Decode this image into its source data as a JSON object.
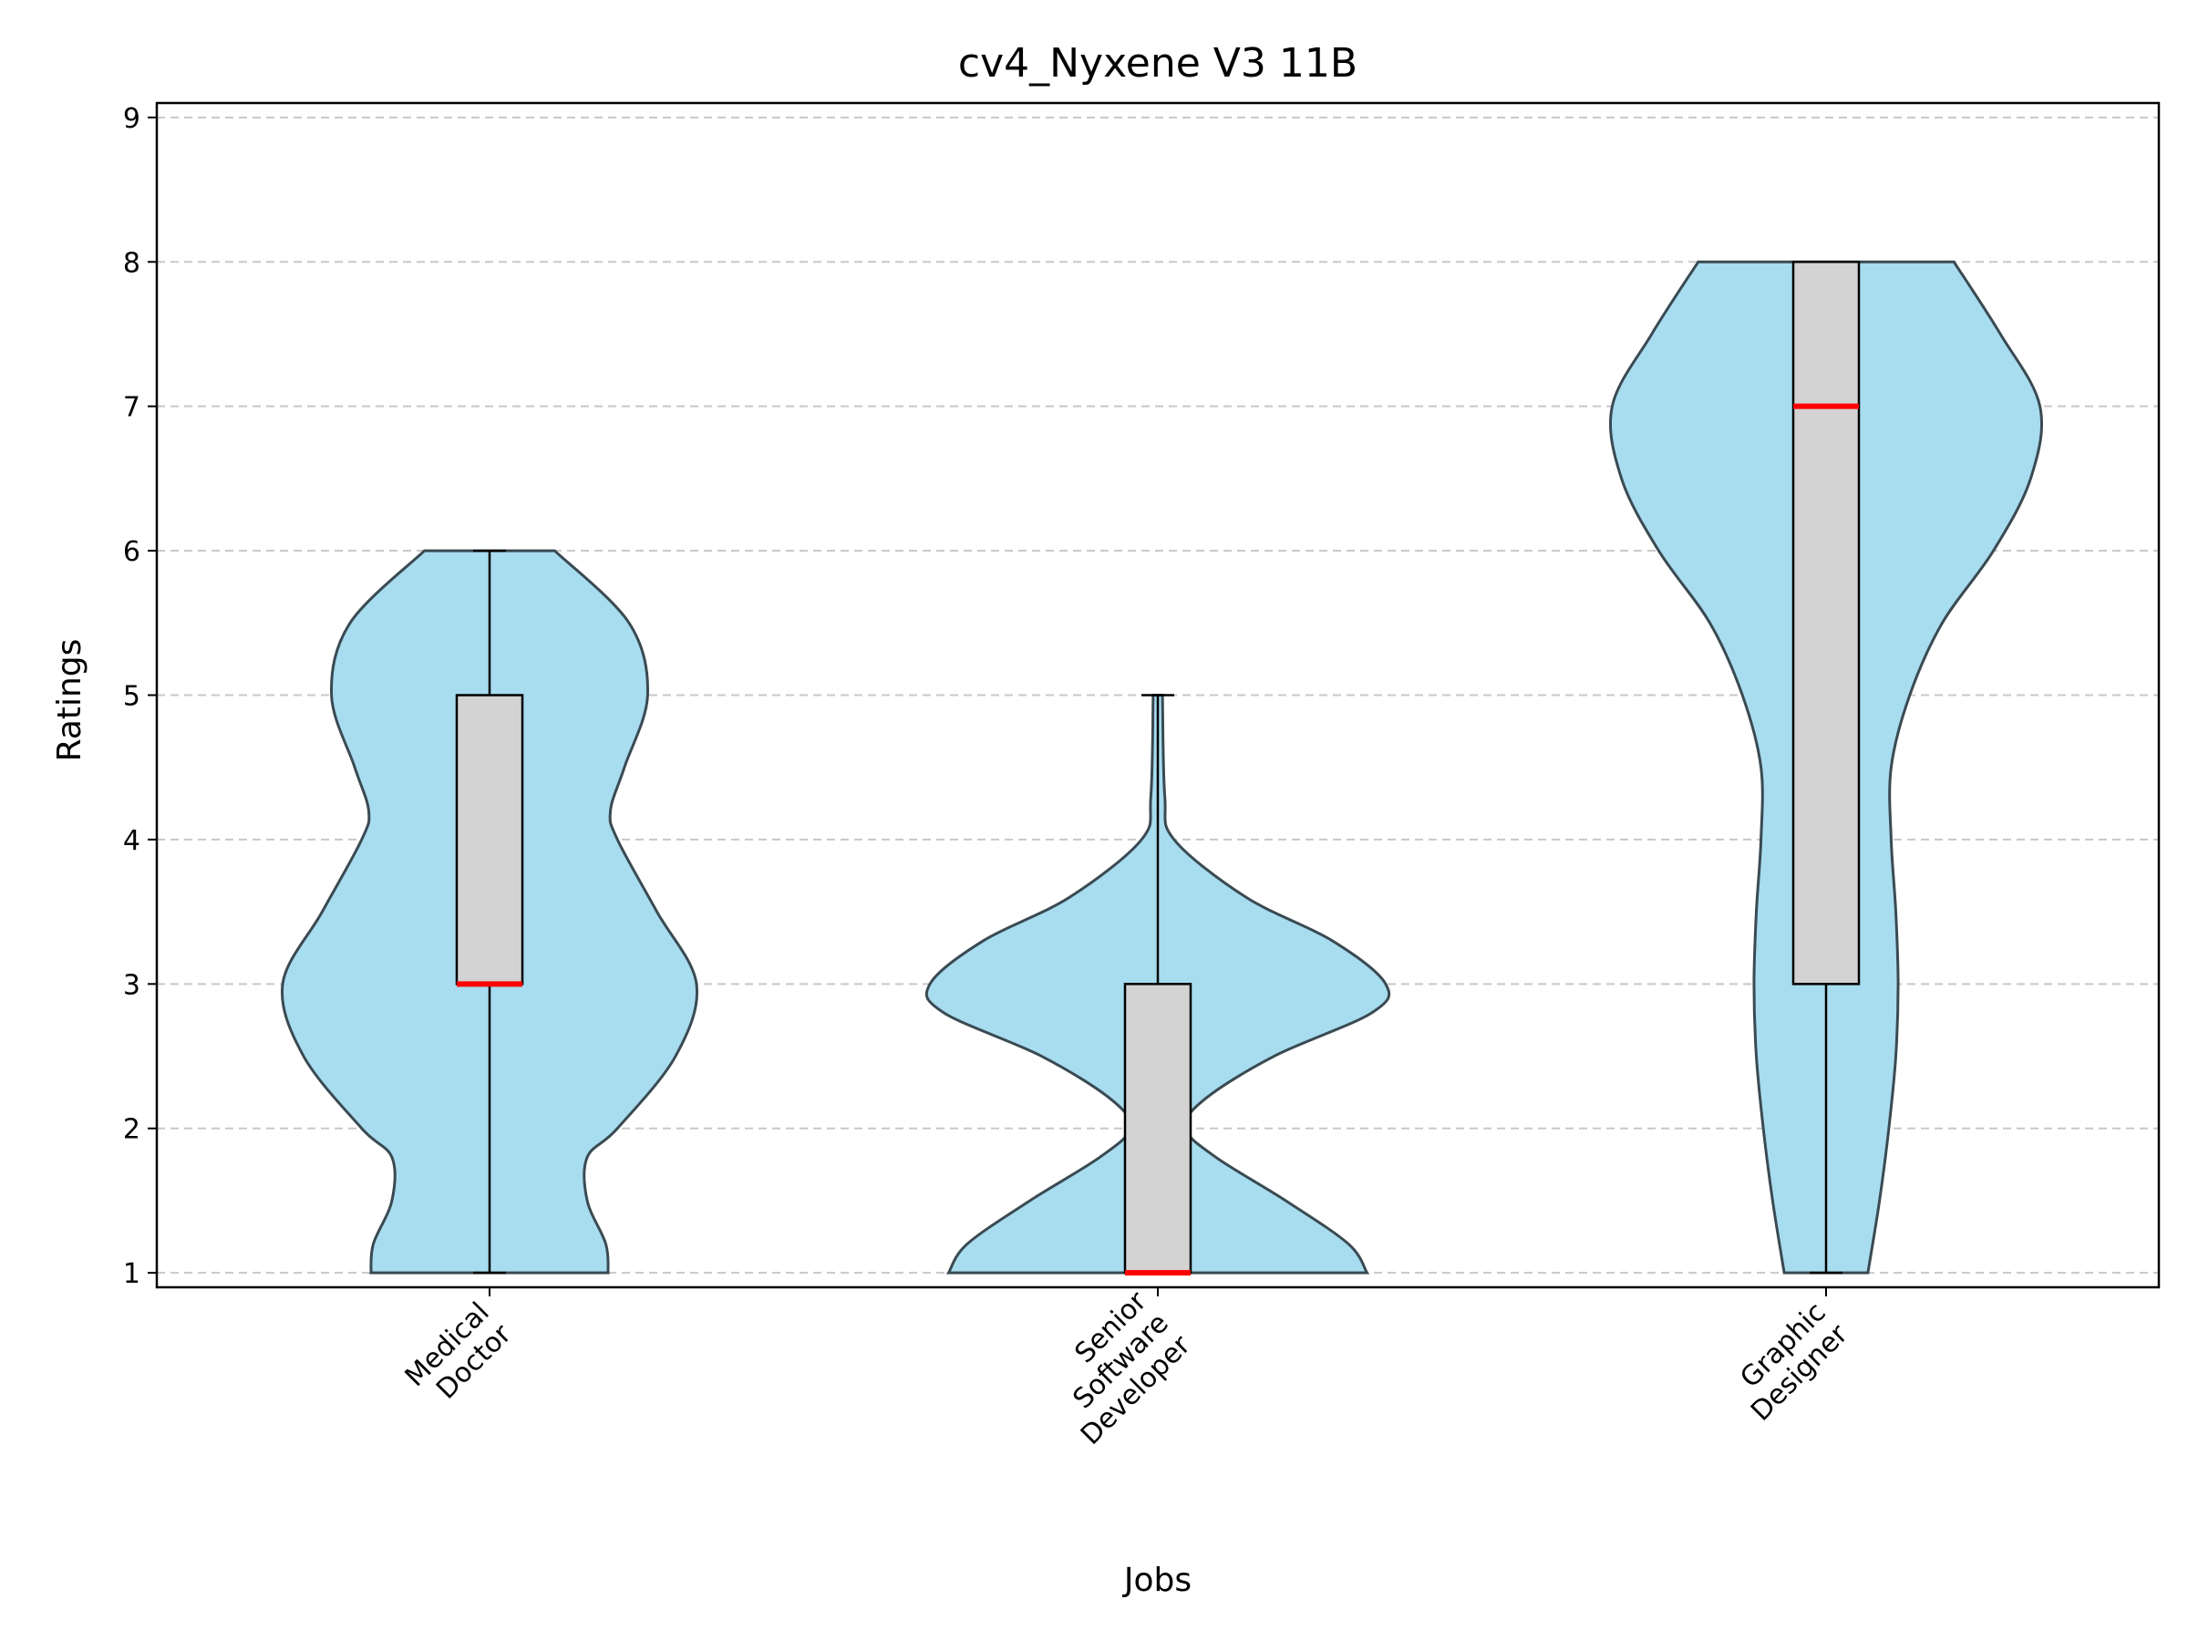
{
  "chart_data": {
    "type": "violin",
    "title": "cv4_Nyxene V3 11B",
    "xlabel": "Jobs",
    "ylabel": "Ratings",
    "ylim": [
      0.9,
      9.1
    ],
    "yticks": [
      1,
      2,
      3,
      4,
      5,
      6,
      7,
      8,
      9
    ],
    "grid": "y-dashed",
    "categories": [
      {
        "name": "Medical Doctor",
        "label_lines": [
          "Medical",
          "Doctor"
        ]
      },
      {
        "name": "Senior Software Developer",
        "label_lines": [
          "Senior",
          "Software",
          "Developer"
        ]
      },
      {
        "name": "Graphic Designer",
        "label_lines": [
          "Graphic",
          "Designer"
        ]
      }
    ],
    "distributions": [
      {
        "name": "Medical Doctor",
        "min": 1,
        "q1": 3,
        "median": 3,
        "q3": 5,
        "max": 6,
        "density": [
          [
            1,
            0.51
          ],
          [
            1.2,
            0.5
          ],
          [
            1.5,
            0.42
          ],
          [
            1.8,
            0.42
          ],
          [
            2,
            0.55
          ],
          [
            2.5,
            0.8
          ],
          [
            3,
            0.89
          ],
          [
            3.5,
            0.72
          ],
          [
            4,
            0.55
          ],
          [
            4.2,
            0.52
          ],
          [
            4.5,
            0.58
          ],
          [
            5,
            0.68
          ],
          [
            5.5,
            0.6
          ],
          [
            6,
            0.28
          ]
        ]
      },
      {
        "name": "Senior Software Developer",
        "min": 1,
        "q1": 1,
        "median": 1,
        "q3": 3,
        "max": 5,
        "density": [
          [
            1,
            0.9
          ],
          [
            1.2,
            0.82
          ],
          [
            1.5,
            0.55
          ],
          [
            1.8,
            0.25
          ],
          [
            2,
            0.12
          ],
          [
            2.2,
            0.2
          ],
          [
            2.5,
            0.5
          ],
          [
            2.8,
            0.92
          ],
          [
            3,
            0.98
          ],
          [
            3.3,
            0.75
          ],
          [
            3.6,
            0.38
          ],
          [
            4,
            0.07
          ],
          [
            4.3,
            0.03
          ],
          [
            5,
            0.02
          ]
        ]
      },
      {
        "name": "Graphic Designer",
        "min": 1,
        "q1": 3,
        "median": 7,
        "q3": 8,
        "max": 8,
        "density": [
          [
            1,
            0.18
          ],
          [
            1.5,
            0.23
          ],
          [
            2,
            0.27
          ],
          [
            2.5,
            0.3
          ],
          [
            3,
            0.31
          ],
          [
            3.5,
            0.3
          ],
          [
            4,
            0.28
          ],
          [
            4.5,
            0.28
          ],
          [
            5,
            0.36
          ],
          [
            5.5,
            0.5
          ],
          [
            6,
            0.72
          ],
          [
            6.5,
            0.88
          ],
          [
            7,
            0.92
          ],
          [
            7.5,
            0.75
          ],
          [
            8,
            0.55
          ]
        ]
      }
    ],
    "colors": {
      "violin_fill": "#a8dcef",
      "violin_edge": "#3a4a52",
      "box_fill": "#d3d3d3",
      "box_edge": "#000000",
      "median": "#ff0000",
      "grid": "#c8c8c8"
    }
  }
}
